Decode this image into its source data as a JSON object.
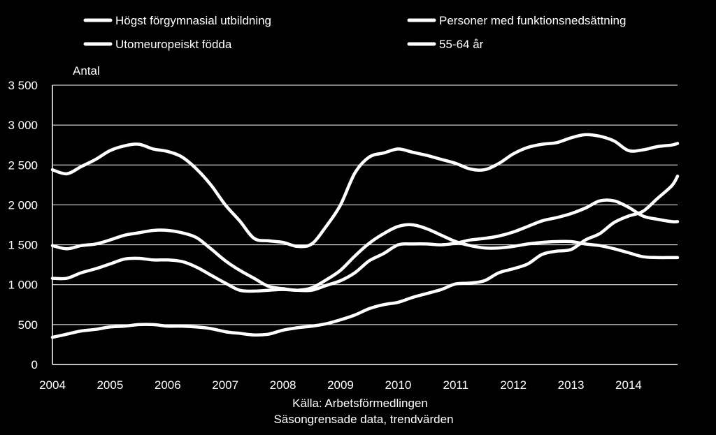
{
  "chart_data": {
    "type": "line",
    "ylabel": "Antal",
    "ylim": [
      0,
      3500
    ],
    "yticks": [
      {
        "value": 0,
        "label": "0"
      },
      {
        "value": 500,
        "label": "500"
      },
      {
        "value": 1000,
        "label": "1 000"
      },
      {
        "value": 1500,
        "label": "1 500"
      },
      {
        "value": 2000,
        "label": "2 000"
      },
      {
        "value": 2500,
        "label": "2 500"
      },
      {
        "value": 3000,
        "label": "3 000"
      },
      {
        "value": 3500,
        "label": "3 500"
      }
    ],
    "xlim": [
      2004.0,
      2014.85
    ],
    "xticks": [
      "2004",
      "2005",
      "2006",
      "2007",
      "2008",
      "2009",
      "2010",
      "2011",
      "2012",
      "2013",
      "2014"
    ],
    "grid": true,
    "legend_position": "top",
    "source_line1": "Källa: Arbetsförmedlingen",
    "source_line2": "Säsongrensade data, trendvärden",
    "series": [
      {
        "name": "Högst förgymnasial utbildning",
        "x": [
          2004.0,
          2004.25,
          2004.5,
          2004.75,
          2005.0,
          2005.25,
          2005.5,
          2005.75,
          2006.0,
          2006.25,
          2006.5,
          2006.75,
          2007.0,
          2007.25,
          2007.5,
          2007.75,
          2008.0,
          2008.25,
          2008.5,
          2008.75,
          2009.0,
          2009.25,
          2009.5,
          2009.75,
          2010.0,
          2010.25,
          2010.5,
          2010.75,
          2011.0,
          2011.25,
          2011.5,
          2011.75,
          2012.0,
          2012.25,
          2012.5,
          2012.75,
          2013.0,
          2013.25,
          2013.5,
          2013.75,
          2014.0,
          2014.25,
          2014.5,
          2014.75,
          2014.85
        ],
        "y": [
          2440,
          2390,
          2480,
          2570,
          2680,
          2740,
          2760,
          2700,
          2670,
          2600,
          2450,
          2250,
          2000,
          1800,
          1580,
          1550,
          1530,
          1480,
          1510,
          1730,
          2000,
          2400,
          2600,
          2650,
          2700,
          2660,
          2620,
          2570,
          2520,
          2450,
          2440,
          2520,
          2640,
          2720,
          2760,
          2780,
          2840,
          2880,
          2860,
          2800,
          2680,
          2690,
          2730,
          2750,
          2770
        ]
      },
      {
        "name": "Personer med funktionsnedsättning",
        "x": [
          2004.0,
          2004.25,
          2004.5,
          2004.75,
          2005.0,
          2005.25,
          2005.5,
          2005.75,
          2006.0,
          2006.25,
          2006.5,
          2006.75,
          2007.0,
          2007.25,
          2007.5,
          2007.75,
          2008.0,
          2008.25,
          2008.5,
          2008.75,
          2009.0,
          2009.25,
          2009.5,
          2009.75,
          2010.0,
          2010.25,
          2010.5,
          2010.75,
          2011.0,
          2011.25,
          2011.5,
          2011.75,
          2012.0,
          2012.25,
          2012.5,
          2012.75,
          2013.0,
          2013.25,
          2013.5,
          2013.75,
          2014.0,
          2014.25,
          2014.5,
          2014.75,
          2014.85
        ],
        "y": [
          340,
          380,
          420,
          440,
          470,
          480,
          500,
          500,
          480,
          480,
          470,
          450,
          410,
          390,
          370,
          380,
          430,
          460,
          480,
          510,
          560,
          620,
          700,
          750,
          780,
          840,
          890,
          940,
          1010,
          1020,
          1050,
          1150,
          1200,
          1260,
          1380,
          1420,
          1440,
          1560,
          1640,
          1780,
          1860,
          1920,
          2080,
          2240,
          2360
        ]
      },
      {
        "name": "Utomeuropeiskt födda",
        "x": [
          2004.0,
          2004.25,
          2004.5,
          2004.75,
          2005.0,
          2005.25,
          2005.5,
          2005.75,
          2006.0,
          2006.25,
          2006.5,
          2006.75,
          2007.0,
          2007.25,
          2007.5,
          2007.75,
          2008.0,
          2008.25,
          2008.5,
          2008.75,
          2009.0,
          2009.25,
          2009.5,
          2009.75,
          2010.0,
          2010.25,
          2010.5,
          2010.75,
          2011.0,
          2011.25,
          2011.5,
          2011.75,
          2012.0,
          2012.25,
          2012.5,
          2012.75,
          2013.0,
          2013.25,
          2013.5,
          2013.75,
          2014.0,
          2014.25,
          2014.5,
          2014.75,
          2014.85
        ],
        "y": [
          1490,
          1450,
          1490,
          1510,
          1560,
          1620,
          1650,
          1680,
          1680,
          1650,
          1590,
          1450,
          1300,
          1180,
          1080,
          980,
          950,
          930,
          960,
          1060,
          1180,
          1360,
          1520,
          1640,
          1730,
          1750,
          1700,
          1620,
          1540,
          1490,
          1460,
          1460,
          1480,
          1510,
          1530,
          1540,
          1540,
          1510,
          1490,
          1450,
          1400,
          1350,
          1340,
          1340,
          1340
        ]
      },
      {
        "name": "55-64 år",
        "x": [
          2004.0,
          2004.25,
          2004.5,
          2004.75,
          2005.0,
          2005.25,
          2005.5,
          2005.75,
          2006.0,
          2006.25,
          2006.5,
          2006.75,
          2007.0,
          2007.25,
          2007.5,
          2007.75,
          2008.0,
          2008.25,
          2008.5,
          2008.75,
          2009.0,
          2009.25,
          2009.5,
          2009.75,
          2010.0,
          2010.25,
          2010.5,
          2010.75,
          2011.0,
          2011.25,
          2011.5,
          2011.75,
          2012.0,
          2012.25,
          2012.5,
          2012.75,
          2013.0,
          2013.25,
          2013.5,
          2013.75,
          2014.0,
          2014.25,
          2014.5,
          2014.75,
          2014.85
        ],
        "y": [
          1080,
          1080,
          1150,
          1200,
          1260,
          1320,
          1330,
          1310,
          1310,
          1290,
          1220,
          1120,
          1020,
          930,
          920,
          930,
          940,
          930,
          930,
          990,
          1050,
          1150,
          1300,
          1390,
          1500,
          1510,
          1510,
          1500,
          1520,
          1560,
          1580,
          1610,
          1660,
          1730,
          1800,
          1840,
          1890,
          1960,
          2050,
          2050,
          1970,
          1860,
          1820,
          1790,
          1790
        ]
      }
    ]
  }
}
